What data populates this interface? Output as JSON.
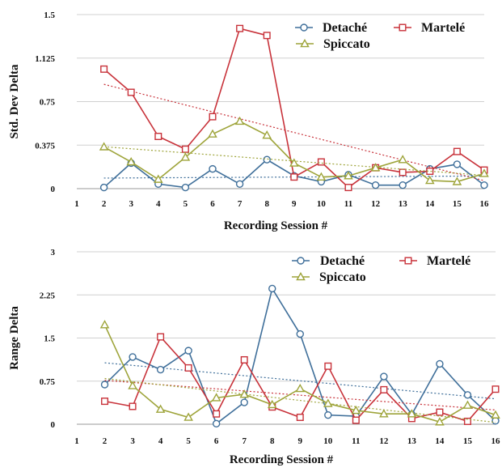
{
  "colors": {
    "detache": "#3f6f9a",
    "martele": "#c8323a",
    "spiccato": "#9ea43a",
    "grid": "#d0d0d0",
    "axis": "#999999"
  },
  "chart_data": [
    {
      "type": "line",
      "title": "",
      "xlabel": "Recording Session #",
      "ylabel": "Std. Dev Delta",
      "xlim": [
        1,
        16
      ],
      "ylim": [
        0,
        1.5
      ],
      "x_ticks": [
        "1",
        "2",
        "3",
        "4",
        "5",
        "6",
        "7",
        "8",
        "9",
        "10",
        "11",
        "12",
        "13",
        "14",
        "15",
        "16"
      ],
      "y_ticks": [
        "0",
        "0.375",
        "0.75",
        "1.125",
        "1.5"
      ],
      "grid": "horizontal",
      "legend": "top-right",
      "trendlines": "linear, dotted, one per series",
      "x": [
        2,
        3,
        4,
        5,
        6,
        7,
        8,
        9,
        10,
        11,
        12,
        13,
        14,
        15,
        16
      ],
      "series": [
        {
          "name": "Detaché",
          "color": "#3f6f9a",
          "marker": "circle",
          "values": [
            0.01,
            0.22,
            0.04,
            0.01,
            0.17,
            0.04,
            0.25,
            0.11,
            0.06,
            0.12,
            0.03,
            0.03,
            0.17,
            0.21,
            0.03
          ]
        },
        {
          "name": "Martelé",
          "color": "#c8323a",
          "marker": "square",
          "values": [
            1.03,
            0.83,
            0.45,
            0.34,
            0.62,
            1.38,
            1.32,
            0.1,
            0.23,
            0.01,
            0.18,
            0.14,
            0.15,
            0.32,
            0.16
          ]
        },
        {
          "name": "Spiccato",
          "color": "#9ea43a",
          "marker": "triangle",
          "values": [
            0.36,
            0.23,
            0.08,
            0.27,
            0.47,
            0.58,
            0.46,
            0.22,
            0.1,
            0.11,
            0.18,
            0.25,
            0.07,
            0.06,
            0.13
          ]
        }
      ]
    },
    {
      "type": "line",
      "title": "",
      "xlabel": "Recording Session #",
      "ylabel": "Range Delta",
      "xlim": [
        1,
        16
      ],
      "ylim": [
        0,
        3
      ],
      "x_ticks": [
        "1",
        "2",
        "3",
        "4",
        "5",
        "6",
        "7",
        "8",
        "9",
        "10",
        "11",
        "12",
        "13",
        "14",
        "15",
        "16"
      ],
      "y_ticks": [
        "0",
        "0.75",
        "1.5",
        "2.25",
        "3"
      ],
      "grid": "horizontal",
      "legend": "top-right",
      "trendlines": "linear, dotted, one per series",
      "x": [
        2,
        3,
        4,
        5,
        6,
        7,
        8,
        9,
        10,
        11,
        12,
        13,
        14,
        15,
        16
      ],
      "series": [
        {
          "name": "Detaché",
          "color": "#3f6f9a",
          "marker": "circle",
          "values": [
            0.69,
            1.17,
            0.95,
            1.28,
            0.01,
            0.38,
            2.36,
            1.57,
            0.16,
            0.14,
            0.83,
            0.17,
            1.05,
            0.51,
            0.06
          ]
        },
        {
          "name": "Martelé",
          "color": "#c8323a",
          "marker": "square",
          "values": [
            0.4,
            0.31,
            1.52,
            0.98,
            0.18,
            1.12,
            0.3,
            0.12,
            1.01,
            0.07,
            0.6,
            0.1,
            0.21,
            0.05,
            0.61
          ]
        },
        {
          "name": "Spiccato",
          "color": "#9ea43a",
          "marker": "triangle",
          "values": [
            1.73,
            0.67,
            0.26,
            0.12,
            0.46,
            0.52,
            0.34,
            0.62,
            0.36,
            0.24,
            0.18,
            0.18,
            0.04,
            0.33,
            0.16
          ]
        }
      ]
    }
  ]
}
